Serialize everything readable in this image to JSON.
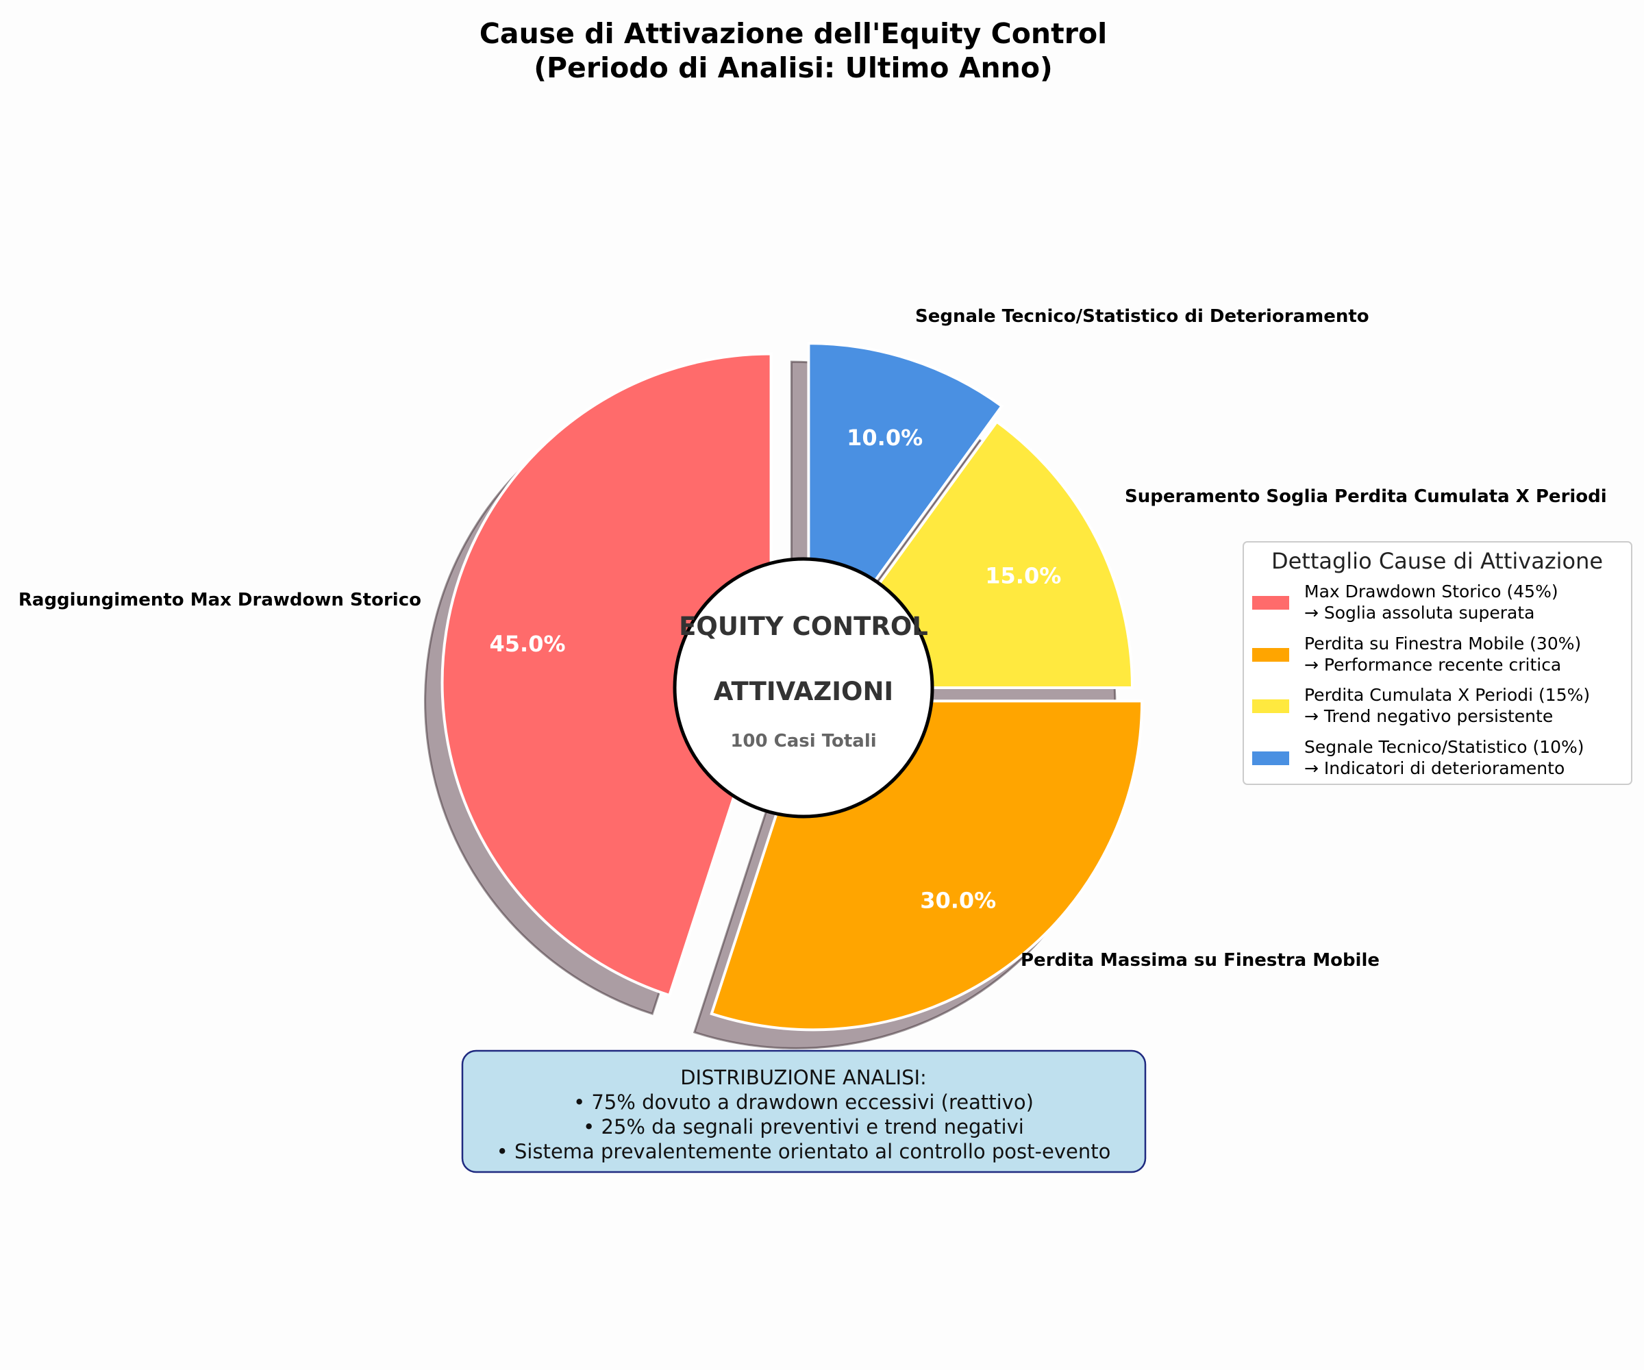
{
  "chart_data": {
    "type": "pie",
    "title_lines": [
      "Cause di Attivazione dell'Equity Control",
      "(Periodo di Analisi: Ultimo Anno)"
    ],
    "categories": [
      "Raggiungimento Max Drawdown Storico",
      "Perdita Massima su Finestra Mobile",
      "Superamento Soglia Perdita Cumulata X Periodi",
      "Segnale Tecnico/Statistico di Deterioramento"
    ],
    "values": [
      45,
      30,
      15,
      10
    ],
    "percent_labels": [
      "45.0%",
      "30.0%",
      "15.0%",
      "10.0%"
    ],
    "colors": [
      "#ff6b6b",
      "#ffa500",
      "#ffe93f",
      "#4a90e2"
    ],
    "explode": [
      0.1,
      0.05,
      0.0,
      0.05
    ],
    "start_angle_deg": 90,
    "direction": "counterclockwise",
    "shadow": true,
    "center": {
      "line1": "EQUITY CONTROL",
      "line2": "ATTIVAZIONI",
      "line3": "100 Casi Totali"
    },
    "legend": {
      "title": "Dettaglio Cause di Attivazione",
      "placement": "center-right",
      "entries": [
        {
          "line1": "Max Drawdown Storico (45%)",
          "line2": "→ Soglia assoluta superata"
        },
        {
          "line1": "Perdita su Finestra Mobile (30%)",
          "line2": "→ Performance recente critica"
        },
        {
          "line1": "Perdita Cumulata X Periodi (15%)",
          "line2": "→ Trend negativo persistente"
        },
        {
          "line1": "Segnale Tecnico/Statistico (10%)",
          "line2": "→ Indicatori di deterioramento"
        }
      ]
    },
    "note": {
      "lines": [
        "DISTRIBUZIONE ANALISI:",
        "• 75% dovuto a drawdown eccessivi (reattivo)",
        "• 25% da segnali preventivi e trend negativi",
        "• Sistema prevalentemente orientato al controllo post-evento"
      ],
      "background": "#bfe0ee",
      "border": "#1f2a80"
    }
  }
}
